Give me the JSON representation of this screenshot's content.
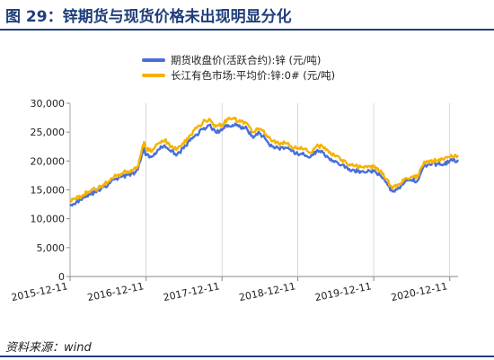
{
  "figure": {
    "title": "图 29：锌期货与现货价格未出现明显分化",
    "source": "资料来源：wind"
  },
  "colors": {
    "title": "#1f3d7a",
    "futures": "#4a6fd8",
    "spot": "#f5b200",
    "axis": "#888888",
    "gridline": "#bfbfbf"
  },
  "chart_data": {
    "type": "line",
    "title": "",
    "xlabel": "",
    "ylabel": "",
    "ylim": [
      0,
      30000
    ],
    "y_ticks": [
      0,
      5000,
      10000,
      15000,
      20000,
      25000,
      30000
    ],
    "y_tick_labels": [
      "0",
      "5,000",
      "10,000",
      "15,000",
      "20,000",
      "25,000",
      "30,000"
    ],
    "x_tick_labels": [
      "2015-12-11",
      "2016-12-11",
      "2017-12-11",
      "2018-12-11",
      "2019-12-11",
      "2020-12-11"
    ],
    "x_range": [
      "2015-12-11",
      "2021-01-20"
    ],
    "grid": false,
    "legend_position": "top",
    "x": [
      "2015-12-11",
      "2016-01-10",
      "2016-02-10",
      "2016-03-10",
      "2016-04-10",
      "2016-05-10",
      "2016-06-10",
      "2016-07-10",
      "2016-08-10",
      "2016-09-10",
      "2016-10-10",
      "2016-11-01",
      "2016-11-15",
      "2016-12-01",
      "2016-12-11",
      "2017-01-10",
      "2017-02-10",
      "2017-03-10",
      "2017-04-10",
      "2017-05-10",
      "2017-06-10",
      "2017-07-10",
      "2017-08-10",
      "2017-09-10",
      "2017-10-10",
      "2017-11-10",
      "2017-12-11",
      "2018-01-10",
      "2018-02-10",
      "2018-03-10",
      "2018-04-10",
      "2018-05-10",
      "2018-06-10",
      "2018-07-10",
      "2018-08-10",
      "2018-09-10",
      "2018-10-10",
      "2018-11-10",
      "2018-12-11",
      "2019-01-10",
      "2019-02-10",
      "2019-03-10",
      "2019-04-10",
      "2019-05-10",
      "2019-06-10",
      "2019-07-10",
      "2019-08-10",
      "2019-09-10",
      "2019-10-10",
      "2019-11-10",
      "2019-12-11",
      "2020-01-10",
      "2020-02-10",
      "2020-03-10",
      "2020-04-10",
      "2020-05-10",
      "2020-06-10",
      "2020-07-10",
      "2020-08-10",
      "2020-09-10",
      "2020-10-10",
      "2020-11-10",
      "2020-12-11",
      "2021-01-20"
    ],
    "series": [
      {
        "name": "期货收盘价(活跃合约):锌  (元/吨)",
        "color": "#4a6fd8",
        "values": [
          12500,
          12900,
          13600,
          14200,
          14600,
          15300,
          15800,
          16800,
          17200,
          17600,
          17900,
          18500,
          20200,
          22200,
          21000,
          20800,
          22000,
          22700,
          21600,
          21200,
          22200,
          23500,
          24600,
          25500,
          26200,
          25000,
          25300,
          26200,
          26300,
          25800,
          25600,
          24000,
          24900,
          23700,
          22500,
          22200,
          22300,
          21700,
          21200,
          21100,
          20700,
          21700,
          21500,
          20500,
          20000,
          19300,
          18500,
          18300,
          18200,
          18100,
          18200,
          17600,
          16300,
          14700,
          15400,
          16400,
          16700,
          16600,
          19200,
          19300,
          19500,
          19400,
          20000,
          20200
        ]
      },
      {
        "name": "长江有色市场:平均价:锌:0#  (元/吨)",
        "color": "#f5b200",
        "values": [
          13000,
          13500,
          14100,
          14700,
          15100,
          15700,
          16300,
          17300,
          17700,
          18200,
          18500,
          19100,
          21000,
          23300,
          22000,
          21800,
          23100,
          23600,
          22500,
          22100,
          23000,
          24500,
          25700,
          26700,
          27300,
          25900,
          26300,
          27200,
          27300,
          26800,
          26500,
          25000,
          25600,
          24600,
          23400,
          23000,
          23100,
          22500,
          22100,
          22100,
          21500,
          22500,
          22500,
          21400,
          20800,
          20200,
          19300,
          19100,
          19000,
          18900,
          19000,
          18300,
          16900,
          15200,
          15900,
          17000,
          17300,
          17200,
          19900,
          19900,
          20100,
          20200,
          20700,
          21000
        ]
      }
    ]
  }
}
